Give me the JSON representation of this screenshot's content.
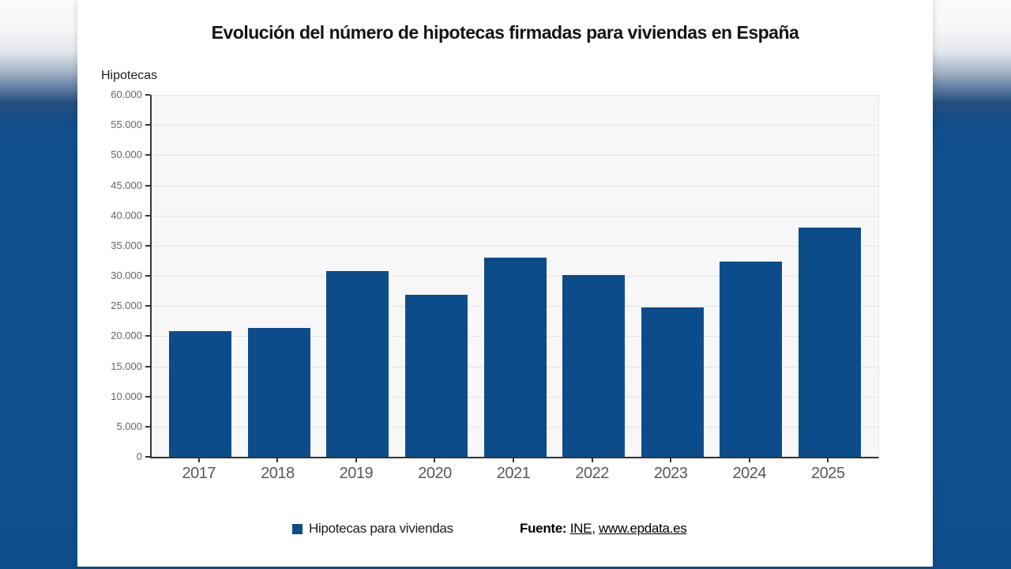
{
  "chart": {
    "title": "Evolución del número de hipotecas firmadas para viviendas en España",
    "ylabel": "Hipotecas",
    "legend_label": "Hipotecas para viviendas"
  },
  "source": {
    "prefix": "Fuente:",
    "link1": "INE",
    "separator": ", ",
    "link2": "www.epdata.es"
  },
  "chart_data": {
    "type": "bar",
    "title": "Evolución del número de hipotecas firmadas para viviendas en España",
    "xlabel": "",
    "ylabel": "Hipotecas",
    "categories": [
      "2017",
      "2018",
      "2019",
      "2020",
      "2021",
      "2022",
      "2023",
      "2024",
      "2025"
    ],
    "series": [
      {
        "name": "Hipotecas para viviendas",
        "values": [
          20800,
          21300,
          30800,
          26800,
          33000,
          30100,
          24800,
          32300,
          38000
        ]
      }
    ],
    "ylim": [
      0,
      60000
    ],
    "ytick_step": 5000,
    "ytick_labels": [
      "0",
      "5.000",
      "10.000",
      "15.000",
      "20.000",
      "25.000",
      "30.000",
      "35.000",
      "40.000",
      "45.000",
      "50.000",
      "55.000",
      "60.000"
    ],
    "grid": true,
    "legend_position": "bottom",
    "source_text": "Fuente: INE, www.epdata.es"
  },
  "colors": {
    "bar": "#0d4c8a",
    "background_blue": "#11508e",
    "card": "#ffffff",
    "axis": "#333333",
    "grid": "#e4e4e4",
    "tick_label": "#666666"
  }
}
